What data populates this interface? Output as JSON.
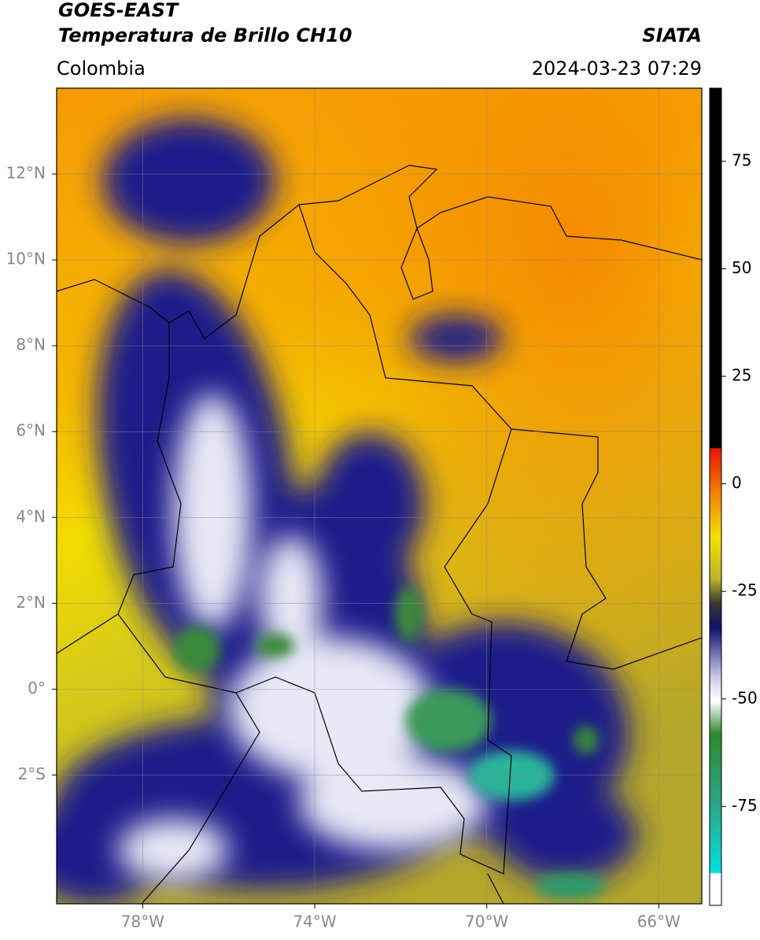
{
  "header": {
    "title": "GOES-EAST",
    "subtitle": "Temperatura de Brillo CH10",
    "source": "SIATA",
    "region": "Colombia",
    "datetime": "2024-03-23 07:29"
  },
  "map": {
    "lon_range": [
      -80,
      -65
    ],
    "lat_range": [
      -5,
      14
    ],
    "lon_ticks": [
      {
        "value": -78,
        "label": "78°W"
      },
      {
        "value": -74,
        "label": "74°W"
      },
      {
        "value": -70,
        "label": "70°W"
      },
      {
        "value": -66,
        "label": "66°W"
      }
    ],
    "lat_ticks": [
      {
        "value": 12,
        "label": "12°N"
      },
      {
        "value": 10,
        "label": "10°N"
      },
      {
        "value": 8,
        "label": "8°N"
      },
      {
        "value": 6,
        "label": "6°N"
      },
      {
        "value": 4,
        "label": "4°N"
      },
      {
        "value": 2,
        "label": "2°N"
      },
      {
        "value": 0,
        "label": "0°"
      },
      {
        "value": -2,
        "label": "2°S"
      }
    ]
  },
  "colorbar": {
    "range": [
      -98,
      92
    ],
    "ticks": [
      75,
      50,
      25,
      0,
      -25,
      -50,
      -75
    ]
  }
}
